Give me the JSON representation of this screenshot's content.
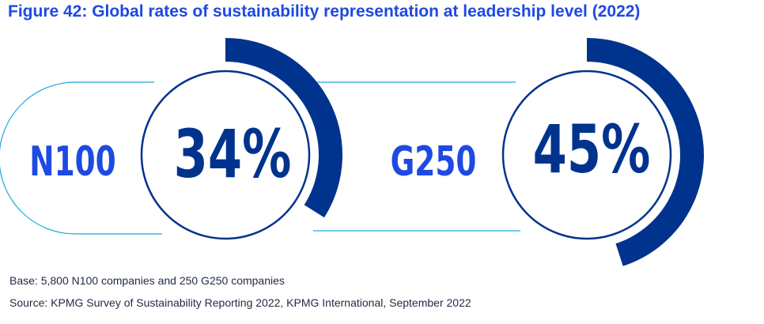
{
  "title": "Figure 42: Global rates of sustainability representation at leadership level (2022)",
  "chart_data": {
    "type": "pie",
    "style": "progress-ring",
    "unit": "%",
    "series": [
      {
        "name": "N100",
        "value": 34,
        "value_label": "34%"
      },
      {
        "name": "G250",
        "value": 45,
        "value_label": "45%"
      }
    ]
  },
  "footnotes": {
    "base": "Base: 5,800 N100 companies and 250 G250 companies",
    "source": "Source: KPMG Survey of Sustainability Reporting 2022, KPMG International, September 2022"
  },
  "colors": {
    "title": "#1e49e2",
    "label": "#1e49e2",
    "value": "#00338d",
    "arc": "#00338d",
    "ring": "#00338d",
    "outline": "#1aa9dc",
    "footnote": "#1f2a44"
  }
}
